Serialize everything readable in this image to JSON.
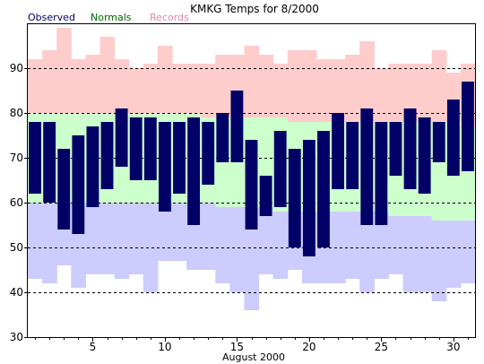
{
  "chart_data": {
    "type": "bar",
    "title": "KMKG Temps for 8/2000",
    "xlabel": "August 2000",
    "ylabel": "",
    "xlim": [
      0.5,
      31.5
    ],
    "ylim": [
      30,
      100
    ],
    "yticks": [
      30,
      40,
      50,
      60,
      70,
      80,
      90
    ],
    "xticks": [
      5,
      10,
      15,
      20,
      25,
      30
    ],
    "grid": "horizontal dashed at 40-90",
    "legend": {
      "position": "top-left",
      "entries": [
        {
          "label": "Observed",
          "color": "#000066"
        },
        {
          "label": "Normals",
          "color": "#006600"
        },
        {
          "label": "Records",
          "color": "#dd88aa"
        }
      ]
    },
    "colors": {
      "observed": "#000066",
      "normals_band": "#ccffcc",
      "records_high_band": "#ffcccc",
      "records_low_band": "#ccccff",
      "grid": "#000000"
    },
    "days": [
      1,
      2,
      3,
      4,
      5,
      6,
      7,
      8,
      9,
      10,
      11,
      12,
      13,
      14,
      15,
      16,
      17,
      18,
      19,
      20,
      21,
      22,
      23,
      24,
      25,
      26,
      27,
      28,
      29,
      30,
      31
    ],
    "series": [
      {
        "name": "Observed",
        "low": [
          62,
          60,
          54,
          53,
          59,
          63,
          68,
          65,
          65,
          58,
          62,
          55,
          64,
          69,
          69,
          54,
          57,
          59,
          50,
          48,
          50,
          63,
          63,
          55,
          55,
          66,
          63,
          62,
          69,
          66,
          67
        ],
        "high": [
          78,
          78,
          72,
          75,
          77,
          78,
          81,
          79,
          79,
          78,
          78,
          79,
          78,
          80,
          85,
          74,
          66,
          76,
          72,
          74,
          76,
          80,
          78,
          81,
          78,
          78,
          81,
          79,
          78,
          83,
          87
        ]
      },
      {
        "name": "Normals",
        "low": [
          60,
          60,
          60,
          60,
          60,
          60,
          60,
          60,
          60,
          60,
          60,
          60,
          60,
          59,
          59,
          59,
          59,
          58,
          58,
          58,
          58,
          58,
          58,
          58,
          58,
          57,
          57,
          57,
          56,
          56,
          56
        ],
        "high": [
          80,
          80,
          80,
          80,
          80,
          80,
          80,
          80,
          80,
          80,
          80,
          80,
          79,
          79,
          79,
          79,
          79,
          79,
          78,
          78,
          78,
          78,
          78,
          78,
          78,
          78,
          78,
          78,
          78,
          78,
          77
        ]
      },
      {
        "name": "Records",
        "low": [
          43,
          42,
          46,
          41,
          44,
          44,
          43,
          44,
          40,
          47,
          47,
          45,
          45,
          42,
          40,
          36,
          44,
          43,
          45,
          42,
          42,
          42,
          43,
          40,
          43,
          44,
          40,
          40,
          38,
          41,
          42
        ],
        "high": [
          92,
          94,
          99,
          92,
          93,
          97,
          92,
          90,
          91,
          95,
          91,
          91,
          91,
          93,
          93,
          95,
          93,
          91,
          94,
          94,
          92,
          92,
          93,
          96,
          90,
          91,
          91,
          91,
          94,
          89,
          91
        ]
      }
    ]
  }
}
